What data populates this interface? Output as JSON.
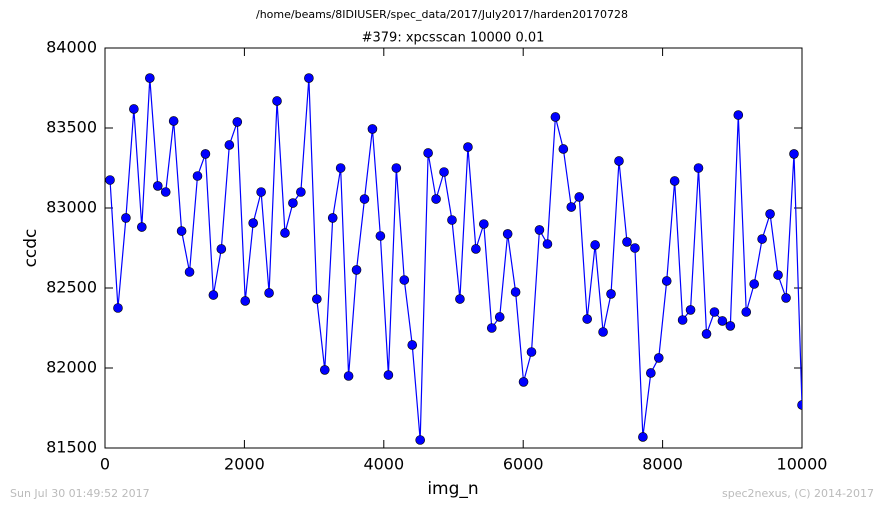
{
  "chart_data": {
    "type": "line",
    "suptitle": "/home/beams/8IDIUSER/spec_data/2017/July2017/harden20170728",
    "title": "#379: xpcsscan 10000 0.01",
    "xlabel": "img_n",
    "ylabel": "ccdc",
    "footer_left": "Sun Jul 30 01:49:52 2017",
    "footer_right": "spec2nexus, (C) 2014-2017",
    "xlim": [
      0,
      10000
    ],
    "xticks": [
      0,
      2000,
      4000,
      6000,
      8000,
      10000
    ],
    "ylim": [
      81500,
      84000
    ],
    "yticks": [
      81500,
      82000,
      82500,
      83000,
      83500,
      84000
    ],
    "x": [
      72,
      186,
      300,
      414,
      528,
      643,
      757,
      871,
      985,
      1099,
      1213,
      1327,
      1441,
      1555,
      1669,
      1784,
      1898,
      2012,
      2126,
      2240,
      2354,
      2468,
      2582,
      2696,
      2810,
      2925,
      3039,
      3153,
      3267,
      3381,
      3495,
      3609,
      3723,
      3837,
      3951,
      4066,
      4180,
      4294,
      4408,
      4522,
      4636,
      4750,
      4864,
      4978,
      5092,
      5207,
      5321,
      5435,
      5549,
      5663,
      5777,
      5891,
      6005,
      6119,
      6233,
      6348,
      6462,
      6576,
      6690,
      6804,
      6918,
      7032,
      7146,
      7260,
      7374,
      7489,
      7603,
      7717,
      7831,
      7945,
      8059,
      8173,
      8287,
      8401,
      8515,
      8630,
      8744,
      8858,
      8972,
      9086,
      9200,
      9314,
      9428,
      9542,
      9656,
      9771,
      9885,
      10000
    ],
    "series": [
      {
        "name": "ccdc",
        "color": "#0000ff",
        "values": [
          83175,
          82375,
          82938,
          83619,
          82881,
          83812,
          83138,
          83100,
          83544,
          82856,
          82600,
          83200,
          83338,
          82456,
          82744,
          83394,
          83538,
          82419,
          82906,
          83100,
          82469,
          83669,
          82844,
          83031,
          83100,
          83812,
          82431,
          81988,
          82938,
          83250,
          81950,
          82613,
          83056,
          83494,
          82825,
          81956,
          83250,
          82550,
          82144,
          81550,
          83344,
          83056,
          83225,
          82925,
          82431,
          83381,
          82744,
          82900,
          82250,
          82319,
          82838,
          82475,
          81913,
          82100,
          82863,
          82775,
          83569,
          83369,
          83006,
          83069,
          82306,
          82769,
          82225,
          82463,
          83294,
          82788,
          82750,
          81569,
          81969,
          82063,
          82544,
          83169,
          82300,
          82363,
          83250,
          82213,
          82350,
          82294,
          82263,
          83581,
          82350,
          82525,
          82806,
          82963,
          82581,
          82438,
          83338,
          81769
        ]
      }
    ]
  }
}
